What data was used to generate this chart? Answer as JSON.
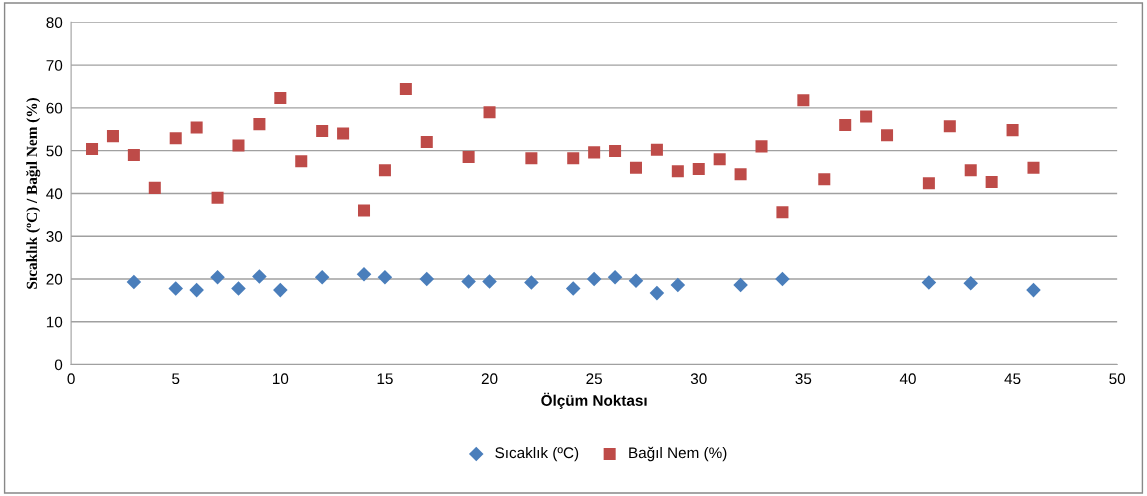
{
  "chart_data": {
    "type": "scatter",
    "xlabel": "Ölçüm Noktası",
    "ylabel": "Sıcaklık (ºC) / Bağıl Nem (%)",
    "xlim": [
      0,
      50
    ],
    "xticks": [
      0,
      5,
      10,
      15,
      20,
      25,
      30,
      35,
      40,
      45,
      50
    ],
    "ylim": [
      0,
      80
    ],
    "yticks": [
      0,
      10,
      20,
      30,
      40,
      50,
      60,
      70,
      80
    ],
    "grid": "y",
    "legend": "bottom",
    "series": [
      {
        "name": "Sıcaklık (ºC)",
        "color": "#4a7ebb",
        "marker": "diamond",
        "x": [
          3,
          5,
          6,
          7,
          8,
          9,
          10,
          12,
          14,
          15,
          17,
          19,
          20,
          22,
          24,
          25,
          26,
          27,
          28,
          29,
          32,
          34,
          41,
          43,
          46
        ],
        "values": [
          19.3,
          17.8,
          17.4,
          20.4,
          17.8,
          20.6,
          17.4,
          20.4,
          21.1,
          20.4,
          20,
          19.4,
          19.4,
          19.2,
          17.8,
          20,
          20.4,
          19.6,
          16.7,
          18.6,
          18.6,
          20,
          19.2,
          19,
          17.4
        ]
      },
      {
        "name": "Bağıl Nem (%)",
        "color": "#be4b48",
        "marker": "square",
        "x": [
          1,
          2,
          3,
          4,
          5,
          6,
          7,
          8,
          9,
          10,
          11,
          12,
          13,
          14,
          15,
          16,
          17,
          19,
          20,
          22,
          24,
          25,
          26,
          27,
          28,
          29,
          30,
          31,
          32,
          33,
          34,
          35,
          36,
          37,
          38,
          39,
          41,
          42,
          43,
          44,
          45,
          46
        ],
        "values": [
          50.4,
          53.4,
          49,
          41.3,
          52.9,
          55.4,
          39,
          51.2,
          56.2,
          62.3,
          47.5,
          54.6,
          54,
          36,
          45.4,
          64.4,
          52,
          48.5,
          59,
          48.2,
          48.2,
          49.6,
          49.9,
          46,
          50.2,
          45.2,
          45.7,
          48,
          44.5,
          51,
          35.6,
          61.8,
          43.3,
          56,
          58,
          53.6,
          42.4,
          55.7,
          45.4,
          42.7,
          54.8,
          46
        ]
      }
    ]
  }
}
